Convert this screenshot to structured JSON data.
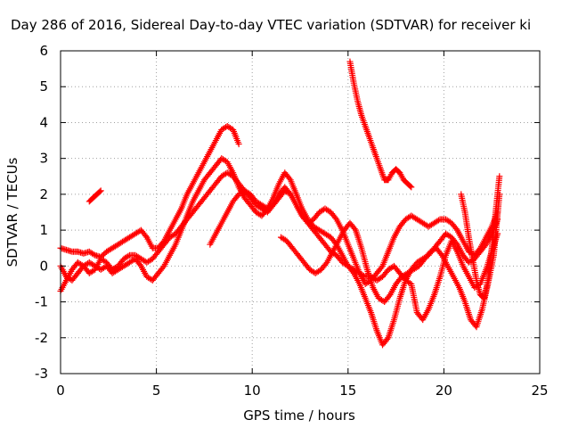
{
  "chart_data": {
    "type": "scatter",
    "title": "Day 286 of 2016, Sidereal Day-to-day VTEC variation (SDTVAR) for receiver ki",
    "xlabel": "GPS time / hours",
    "ylabel": "SDTVAR / TECUs",
    "xlim": [
      0,
      25
    ],
    "ylim": [
      -3,
      6
    ],
    "xticks": [
      "0",
      "5",
      "10",
      "15",
      "20",
      "25"
    ],
    "yticks": [
      "-3",
      "-2",
      "-1",
      "0",
      "1",
      "2",
      "3",
      "4",
      "5",
      "6"
    ],
    "grid": true,
    "marker": "plus",
    "color": "#ff0000",
    "series": [
      {
        "x": [
          0.0,
          0.3,
          0.6,
          0.9,
          1.2,
          1.5,
          1.8,
          2.1,
          2.4,
          2.7,
          3.0,
          3.3,
          3.6,
          3.9,
          4.2,
          4.5,
          4.8,
          5.1,
          5.4,
          5.7,
          6.0,
          6.3,
          6.6,
          6.9,
          7.2,
          7.5,
          7.8,
          8.1,
          8.4,
          8.7,
          9.0,
          9.3
        ],
        "y": [
          0.5,
          0.45,
          0.4,
          0.4,
          0.35,
          0.4,
          0.3,
          0.25,
          0.4,
          0.5,
          0.6,
          0.7,
          0.8,
          0.9,
          1.0,
          0.8,
          0.5,
          0.5,
          0.7,
          1.0,
          1.3,
          1.6,
          2.0,
          2.3,
          2.6,
          2.9,
          3.2,
          3.5,
          3.8,
          3.9,
          3.8,
          3.4
        ]
      },
      {
        "x": [
          0.0,
          0.3,
          0.6,
          0.9,
          1.2,
          1.5,
          1.8,
          2.1,
          2.4,
          2.7,
          3.0,
          3.3,
          3.6,
          3.9,
          4.2,
          4.5,
          4.8,
          5.1,
          5.4,
          5.7,
          6.0,
          6.3,
          6.6,
          6.9,
          7.2,
          7.5,
          7.8,
          8.1,
          8.4,
          8.7,
          9.0,
          9.3,
          9.6,
          9.9,
          10.2,
          10.5,
          10.8,
          11.1,
          11.4,
          11.7,
          12.0,
          12.3,
          12.6,
          12.9,
          13.2,
          13.5,
          13.8,
          14.1,
          14.4,
          14.7,
          15.0,
          15.3,
          15.6,
          15.9,
          16.2,
          16.5,
          16.8,
          17.1,
          17.4,
          17.7,
          18.0,
          18.3,
          18.6,
          18.9,
          19.2,
          19.5,
          19.8,
          20.1,
          20.4,
          20.7,
          21.0,
          21.3,
          21.6,
          21.9,
          22.2,
          22.5,
          22.8
        ],
        "y": [
          0.0,
          -0.3,
          -0.4,
          -0.2,
          0.0,
          0.1,
          0.0,
          -0.1,
          0.0,
          -0.2,
          -0.1,
          0.0,
          0.1,
          0.2,
          0.0,
          -0.3,
          -0.4,
          -0.2,
          0.0,
          0.3,
          0.6,
          1.0,
          1.4,
          1.8,
          2.1,
          2.4,
          2.6,
          2.8,
          3.0,
          2.9,
          2.6,
          2.2,
          1.9,
          1.7,
          1.5,
          1.4,
          1.6,
          1.9,
          2.3,
          2.6,
          2.4,
          2.0,
          1.6,
          1.3,
          1.1,
          1.0,
          0.9,
          0.8,
          0.6,
          0.3,
          0.0,
          -0.2,
          -0.5,
          -0.9,
          -1.3,
          -1.8,
          -2.2,
          -2.0,
          -1.5,
          -0.9,
          -0.4,
          -0.1,
          0.1,
          0.2,
          0.3,
          0.5,
          0.7,
          0.9,
          0.8,
          0.6,
          0.3,
          0.1,
          0.2,
          0.4,
          0.6,
          0.9,
          1.3
        ]
      },
      {
        "x": [
          0.0,
          0.3,
          0.6,
          0.9,
          1.2,
          1.5,
          1.8,
          2.1,
          2.4,
          2.7,
          3.0,
          3.3,
          3.6,
          3.9,
          4.2,
          4.5,
          4.8,
          5.1,
          5.4,
          5.7,
          6.0,
          6.3,
          6.6,
          6.9,
          7.2,
          7.5,
          7.8,
          8.1,
          8.4,
          8.7,
          9.0,
          9.3,
          9.6,
          9.9,
          10.2,
          10.5,
          10.8,
          11.1,
          11.4,
          11.7,
          12.0,
          12.3,
          12.6,
          12.9,
          13.2,
          13.5,
          13.8,
          14.1,
          14.4,
          14.7,
          15.0,
          15.3,
          15.6,
          15.9,
          16.2,
          16.5,
          16.8,
          17.1,
          17.4,
          17.7,
          18.0,
          18.3,
          18.6,
          18.9,
          19.2,
          19.5,
          19.8,
          20.1,
          20.4,
          20.7,
          21.0,
          21.3,
          21.6,
          21.9,
          22.2,
          22.5,
          22.8
        ],
        "y": [
          -0.7,
          -0.4,
          -0.1,
          0.1,
          0.0,
          -0.2,
          -0.1,
          0.2,
          0.1,
          -0.1,
          0.0,
          0.2,
          0.3,
          0.3,
          0.2,
          0.1,
          0.2,
          0.4,
          0.6,
          0.8,
          0.9,
          1.1,
          1.3,
          1.5,
          1.7,
          1.9,
          2.1,
          2.3,
          2.5,
          2.6,
          2.5,
          2.3,
          2.1,
          1.9,
          1.7,
          1.6,
          1.5,
          1.7,
          2.0,
          2.2,
          2.0,
          1.7,
          1.4,
          1.2,
          1.3,
          1.5,
          1.6,
          1.5,
          1.3,
          1.0,
          0.6,
          0.2,
          -0.2,
          -0.5,
          -0.4,
          -0.2,
          0.0,
          0.4,
          0.8,
          1.1,
          1.3,
          1.4,
          1.3,
          1.2,
          1.1,
          1.2,
          1.3,
          1.3,
          1.2,
          1.0,
          0.7,
          0.4,
          0.3,
          0.5,
          0.8,
          1.1,
          1.5
        ]
      },
      {
        "x": [
          7.8,
          8.1,
          8.4,
          8.7,
          9.0,
          9.3,
          9.6,
          9.9,
          10.2,
          10.5,
          10.8,
          11.1,
          11.4,
          11.7,
          12.0,
          12.3,
          12.6,
          12.9,
          13.2,
          13.5,
          13.8,
          14.1,
          14.4,
          14.7,
          15.0,
          15.3,
          15.6,
          15.9,
          16.2,
          16.5,
          16.8,
          17.1,
          17.4,
          17.7,
          18.0,
          18.3,
          18.6,
          18.9,
          19.2,
          19.5,
          19.8,
          20.1,
          20.4,
          20.7,
          21.0,
          21.3,
          21.6,
          21.9,
          22.2,
          22.5,
          22.8
        ],
        "y": [
          0.6,
          0.9,
          1.2,
          1.5,
          1.8,
          2.0,
          2.1,
          2.0,
          1.8,
          1.7,
          1.6,
          1.7,
          1.9,
          2.1,
          2.0,
          1.7,
          1.4,
          1.2,
          1.0,
          0.8,
          0.6,
          0.4,
          0.3,
          0.1,
          0.0,
          -0.1,
          -0.2,
          -0.3,
          -0.3,
          -0.4,
          -0.3,
          -0.1,
          0.0,
          -0.2,
          -0.4,
          -0.5,
          -1.3,
          -1.5,
          -1.2,
          -0.8,
          -0.3,
          0.3,
          0.7,
          0.4,
          0.0,
          -0.3,
          -0.6,
          -0.5,
          -0.1,
          0.4,
          0.9
        ]
      },
      {
        "x": [
          11.5,
          11.8,
          12.1,
          12.4,
          12.7,
          13.0,
          13.3,
          13.6,
          13.9,
          14.2,
          14.5,
          14.8,
          15.1,
          15.4,
          15.7,
          16.0,
          16.3,
          16.6,
          16.9,
          17.2,
          17.5,
          17.8,
          18.1,
          18.4,
          18.7,
          19.0,
          19.3,
          19.6,
          19.9,
          20.2,
          20.5,
          20.8,
          21.1,
          21.4,
          21.7,
          22.0,
          22.3,
          22.6,
          22.9
        ],
        "y": [
          0.8,
          0.7,
          0.5,
          0.3,
          0.1,
          -0.1,
          -0.2,
          -0.1,
          0.1,
          0.4,
          0.7,
          1.0,
          1.2,
          1.0,
          0.5,
          -0.1,
          -0.6,
          -0.9,
          -1.0,
          -0.8,
          -0.5,
          -0.3,
          -0.2,
          -0.1,
          0.0,
          0.2,
          0.4,
          0.5,
          0.3,
          0.0,
          -0.3,
          -0.6,
          -1.0,
          -1.5,
          -1.7,
          -1.2,
          -0.5,
          0.3,
          2.0
        ]
      },
      {
        "x": [
          15.1,
          15.3,
          15.5,
          15.7,
          15.9,
          16.1,
          16.3,
          16.5,
          16.7,
          16.9,
          17.1,
          17.3,
          17.5,
          17.7,
          17.9,
          18.1,
          18.3
        ],
        "y": [
          5.7,
          5.1,
          4.6,
          4.2,
          3.9,
          3.6,
          3.3,
          3.0,
          2.7,
          2.4,
          2.4,
          2.6,
          2.7,
          2.6,
          2.4,
          2.3,
          2.2
        ]
      },
      {
        "x": [
          1.5,
          1.7,
          1.9,
          2.1
        ],
        "y": [
          1.8,
          1.9,
          2.0,
          2.1
        ]
      },
      {
        "x": [
          20.9,
          21.1,
          21.3,
          21.5,
          21.7,
          21.9,
          22.1,
          22.3,
          22.5,
          22.7,
          22.9
        ],
        "y": [
          2.0,
          1.5,
          0.8,
          0.2,
          -0.4,
          -0.8,
          -0.9,
          -0.4,
          0.5,
          1.5,
          2.5
        ]
      }
    ]
  }
}
